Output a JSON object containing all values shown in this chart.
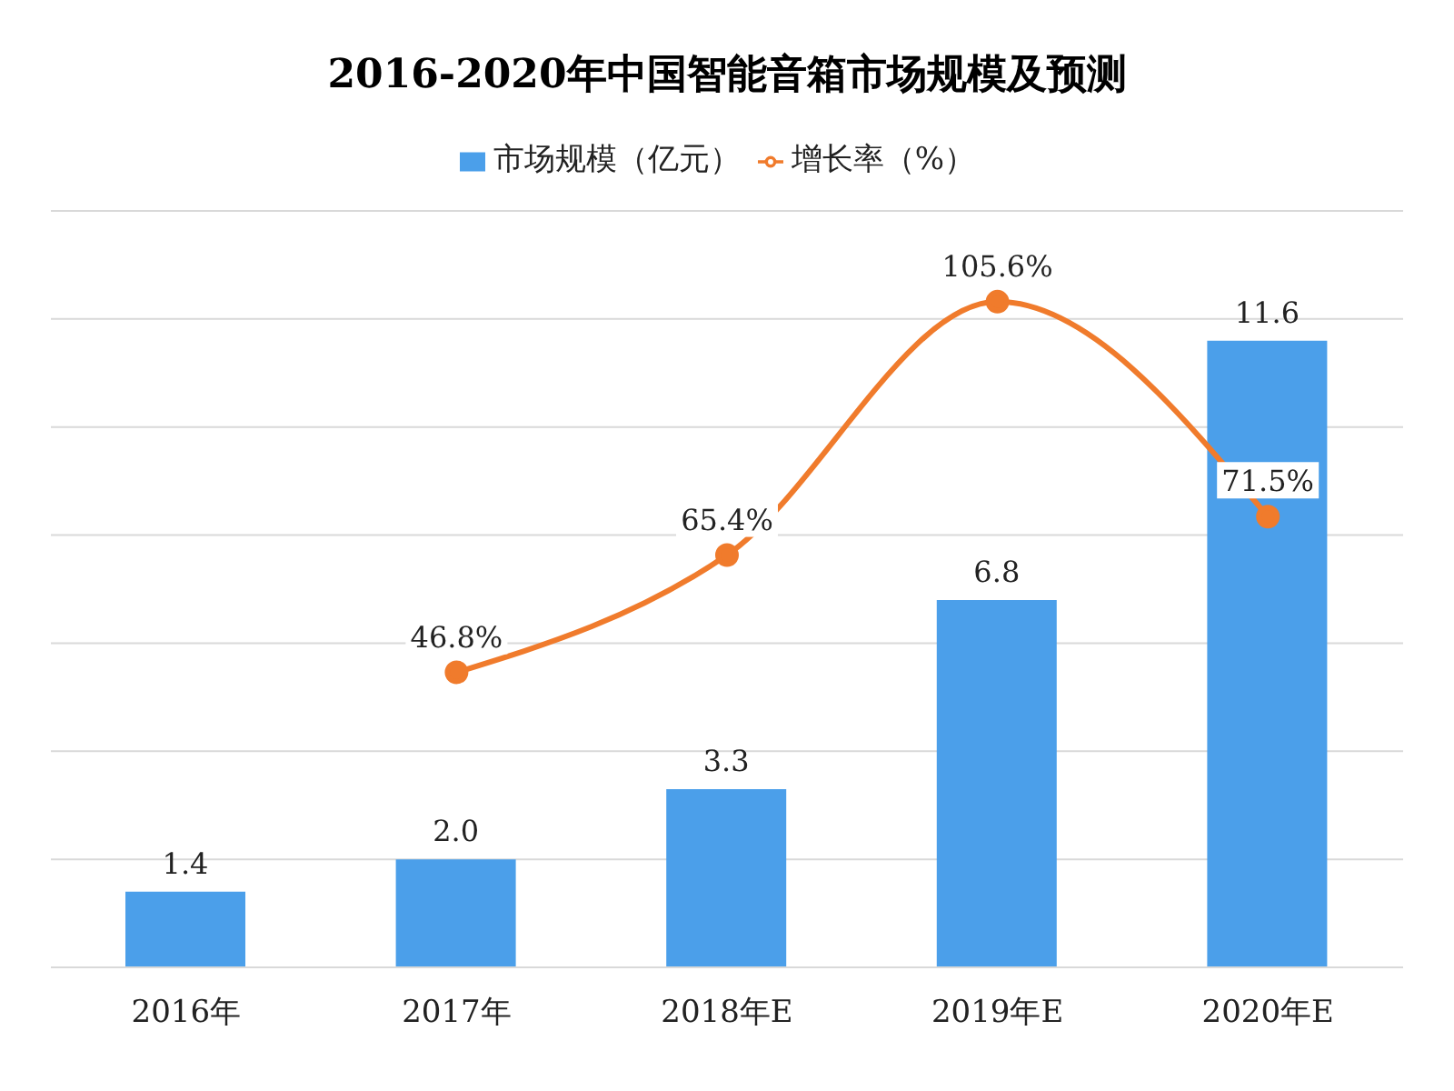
{
  "chart_data": {
    "type": "bar",
    "title": "2016-2020年中国智能音箱市场规模及预测",
    "categories": [
      "2016年",
      "2017年",
      "2018年E",
      "2019年E",
      "2020年E"
    ],
    "series": [
      {
        "name": "市场规模（亿元）",
        "color": "#4b9fea",
        "values": [
          1.4,
          2.0,
          3.3,
          6.8,
          11.6
        ],
        "value_labels": [
          "1.4",
          "2.0",
          "3.3",
          "6.8",
          "11.6"
        ]
      },
      {
        "name": "增长率（%）",
        "type": "line",
        "axis": "y2",
        "color": "#f07b2c",
        "values": [
          null,
          46.8,
          65.4,
          105.6,
          71.5
        ],
        "value_labels": [
          null,
          "46.8%",
          "65.4%",
          "105.6%",
          "71.5%"
        ]
      }
    ],
    "ylim": [
      0,
      14
    ],
    "yticks": [
      {
        "value": 0,
        "label": null
      },
      {
        "value": 2,
        "label": null
      },
      {
        "value": 4,
        "label": null
      },
      {
        "value": 6,
        "label": null
      },
      {
        "value": 8,
        "label": null
      },
      {
        "value": 10,
        "label": null
      },
      {
        "value": 12,
        "label": null
      },
      {
        "value": 14,
        "label": null
      }
    ],
    "y2lim": [
      0,
      120
    ],
    "tick_labels": "x",
    "grid": "y",
    "legend": "top",
    "marker": "circle",
    "line_style": "solid"
  }
}
